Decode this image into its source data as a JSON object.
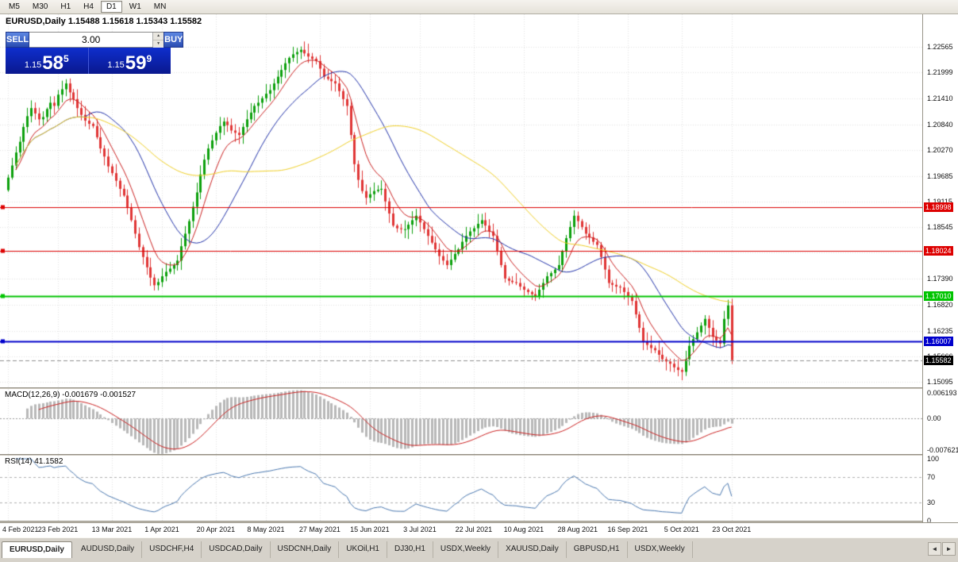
{
  "icons": {
    "up": "▲",
    "down": "▼",
    "scroll_left": "◄",
    "scroll_right": "►"
  },
  "toolbar": {
    "timeframes": [
      "M5",
      "M30",
      "H1",
      "H4",
      "D1",
      "W1",
      "MN"
    ],
    "active": "D1"
  },
  "chart": {
    "title": "EURUSD,Daily 1.15488 1.15618 1.15343 1.15582",
    "symbol": "EURUSD,Daily",
    "ohlc": {
      "open": "1.15488",
      "high": "1.15618",
      "low": "1.15343",
      "close": "1.15582"
    }
  },
  "trade_panel": {
    "sell_label": "SELL",
    "buy_label": "BUY",
    "volume": "3.00",
    "bid": {
      "prefix": "1.15",
      "big": "58",
      "sup": "5"
    },
    "ask": {
      "prefix": "1.15",
      "big": "59",
      "sup": "9"
    }
  },
  "price_axis": {
    "ticks": [
      "1.22565",
      "1.21999",
      "1.21410",
      "1.20840",
      "1.20270",
      "1.19685",
      "1.19115",
      "1.18545",
      "1.17975",
      "1.17390",
      "1.16820",
      "1.16235",
      "1.15666",
      "1.15095"
    ]
  },
  "levels": [
    {
      "label": "1.18998",
      "price": 1.18998,
      "color": "#dd0000",
      "style": "solid",
      "width": 1
    },
    {
      "label": "1.18024",
      "price": 1.18024,
      "color": "#dd0000",
      "style": "solid",
      "width": 1
    },
    {
      "label": "1.17010",
      "price": 1.1701,
      "color": "#00c400",
      "style": "solid",
      "width": 2
    },
    {
      "label": "1.16007",
      "price": 1.16007,
      "color": "#0000cc",
      "style": "solid",
      "width": 2
    },
    {
      "label": "1.15582",
      "price": 1.15582,
      "color": "#000000",
      "style": "dashed",
      "width": 1
    }
  ],
  "chart_data": {
    "type": "candlestick",
    "symbol": "EURUSD",
    "timeframe": "Daily",
    "price_range": {
      "top": 1.23292,
      "bottom": 1.14973
    },
    "x_labels": [
      "4 Feb 2021",
      "23 Feb 2021",
      "13 Mar 2021",
      "1 Apr 2021",
      "20 Apr 2021",
      "8 May 2021",
      "27 May 2021",
      "15 Jun 2021",
      "3 Jul 2021",
      "22 Jul 2021",
      "10 Aug 2021",
      "28 Aug 2021",
      "16 Sep 2021",
      "5 Oct 2021",
      "23 Oct 2021"
    ],
    "label_indices": [
      0,
      13,
      27,
      40,
      54,
      67,
      81,
      94,
      107,
      121,
      134,
      148,
      161,
      175,
      188
    ],
    "closes": [
      1.1965,
      1.1992,
      1.2021,
      1.2045,
      1.2078,
      1.2102,
      1.212,
      1.2108,
      1.2095,
      1.21,
      1.2118,
      1.2132,
      1.2125,
      1.215,
      1.2162,
      1.2175,
      1.2155,
      1.214,
      1.212,
      1.2105,
      1.2092,
      1.2085,
      1.208,
      1.2055,
      1.203,
      1.2012,
      1.199,
      1.1975,
      1.1958,
      1.194,
      1.1925,
      1.1898,
      1.187,
      1.184,
      1.181,
      1.1788,
      1.1765,
      1.1742,
      1.1725,
      1.1732,
      1.1745,
      1.1755,
      1.1762,
      1.177,
      1.178,
      1.1812,
      1.184,
      1.1868,
      1.19,
      1.1932,
      1.1972,
      1.2005,
      1.203,
      1.2048,
      1.2065,
      1.208,
      1.209,
      1.2082,
      1.207,
      1.2065,
      1.206,
      1.2078,
      1.2095,
      1.211,
      1.2125,
      1.2132,
      1.2142,
      1.2152,
      1.216,
      1.2175,
      1.219,
      1.2205,
      1.222,
      1.2232,
      1.224,
      1.2245,
      1.225,
      1.2242,
      1.2235,
      1.223,
      1.2225,
      1.2208,
      1.219,
      1.2185,
      1.218,
      1.2175,
      1.2158,
      1.214,
      1.2125,
      1.206,
      1.1995,
      1.196,
      1.1935,
      1.192,
      1.1928,
      1.1935,
      1.1938,
      1.194,
      1.1912,
      1.1885,
      1.1858,
      1.1852,
      1.185,
      1.185,
      1.186,
      1.187,
      1.188,
      1.1865,
      1.185,
      1.1835,
      1.182,
      1.1805,
      1.179,
      1.178,
      1.177,
      1.1782,
      1.1795,
      1.1805,
      1.1822,
      1.1835,
      1.1845,
      1.1852,
      1.1862,
      1.187,
      1.1858,
      1.1845,
      1.1835,
      1.1802,
      1.177,
      1.174,
      1.1735,
      1.1732,
      1.173,
      1.1722,
      1.1715,
      1.171,
      1.1705,
      1.17,
      1.1715,
      1.173,
      1.1745,
      1.1752,
      1.176,
      1.177,
      1.18,
      1.183,
      1.1855,
      1.188,
      1.1868,
      1.1855,
      1.184,
      1.1832,
      1.1822,
      1.1815,
      1.1788,
      1.176,
      1.173,
      1.1726,
      1.1722,
      1.172,
      1.171,
      1.17,
      1.169,
      1.166,
      1.163,
      1.16,
      1.1592,
      1.1585,
      1.158,
      1.157,
      1.156,
      1.1555,
      1.155,
      1.1542,
      1.1536,
      1.1532,
      1.156,
      1.159,
      1.1605,
      1.162,
      1.1635,
      1.165,
      1.163,
      1.161,
      1.1602,
      1.1595,
      1.165,
      1.168,
      1.1558
    ],
    "moving_averages": [
      {
        "type": "ema",
        "period": 8,
        "color": "#cc2222"
      },
      {
        "type": "sma",
        "period": 21,
        "color": "#2233aa"
      },
      {
        "type": "sma",
        "period": 55,
        "color": "#f0d028"
      }
    ]
  },
  "macd_panel": {
    "label": "MACD(12,26,9) -0.001679 -0.001527",
    "values": {
      "macd": "-0.001679",
      "signal": "-0.001527"
    },
    "axis_labels": [
      "0.006193",
      "0.00",
      "-0.007621"
    ],
    "axis": {
      "top": 0.006193,
      "bottom": -0.007621
    }
  },
  "rsi_panel": {
    "label": "RSI(14) 41.1582",
    "value": "41.1582",
    "axis_labels": [
      "100",
      "70",
      "30",
      "0"
    ],
    "dashed_levels": [
      70,
      30
    ]
  },
  "tabs": {
    "items": [
      "EURUSD,Daily",
      "AUDUSD,Daily",
      "USDCHF,H4",
      "USDCAD,Daily",
      "USDCNH,Daily",
      "UKOil,H1",
      "DJ30,H1",
      "USDX,Weekly",
      "XAUUSD,Daily",
      "GBPUSD,H1",
      "USDX,Weekly"
    ],
    "active_index": 0
  },
  "colors": {
    "candle_up": "#0ca00c",
    "candle_down": "#e03535",
    "grid": "#e3e3e3",
    "macd_hist": "#b8b8b8",
    "macd_signal": "#cc2222",
    "rsi_line": "#4a78b0",
    "bid_line": "#909090",
    "background": "#ffffff"
  }
}
